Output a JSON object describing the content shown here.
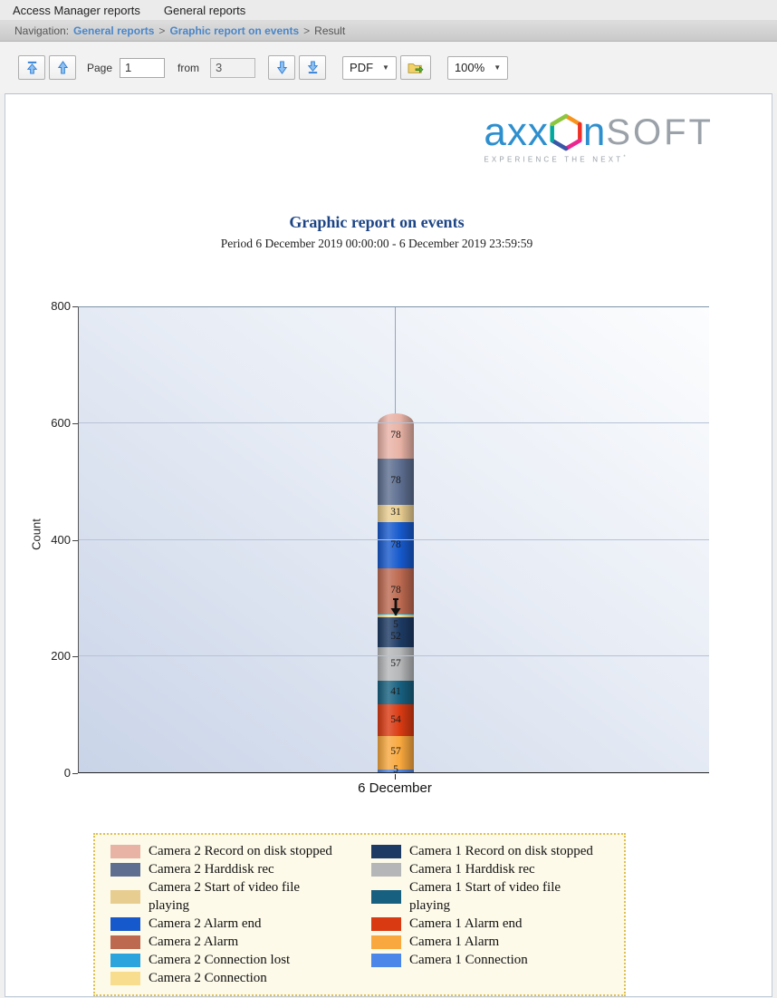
{
  "tabs": {
    "items": [
      {
        "label": "Access Manager reports"
      },
      {
        "label": "General reports"
      }
    ]
  },
  "navbar": {
    "prefix_label": "Navigation:",
    "sep": ">",
    "links": [
      {
        "label": "General reports"
      },
      {
        "label": "Graphic report on events"
      }
    ],
    "current": "Result"
  },
  "toolbar": {
    "page_label": "Page",
    "page_value": "1",
    "from_label": "from",
    "total_pages": "3",
    "format_select": {
      "value": "PDF",
      "caret": "▼"
    },
    "zoom_select": {
      "value": "100%",
      "caret": "▼"
    }
  },
  "logo": {
    "part1": "axx",
    "part2": "n",
    "part3": "SOFT",
    "tagline": "EXPERIENCE THE NEXT",
    "mark": "*"
  },
  "report": {
    "title": "Graphic report on events",
    "period": "Period 6 December 2019 00:00:00 - 6 December 2019 23:59:59"
  },
  "chart_data": {
    "type": "bar",
    "stacked": true,
    "title": "Graphic report on events",
    "categories": [
      "6 December"
    ],
    "xlabel": "",
    "ylabel": "Count",
    "ylim": [
      0,
      800
    ],
    "yticks": [
      0,
      200,
      400,
      600,
      800
    ],
    "grid": true,
    "bar_total": 615,
    "series": [
      {
        "name": "Camera 1 Connection",
        "value": 5,
        "color": "#4c86e8"
      },
      {
        "name": "Camera 1 Alarm",
        "value": 57,
        "color": "#f8a83e"
      },
      {
        "name": "Camera 1 Alarm end",
        "value": 54,
        "color": "#d93a12"
      },
      {
        "name": "Camera 1 Start of video file playing",
        "value": 41,
        "color": "#17607f"
      },
      {
        "name": "Camera 1 Harddisk rec",
        "value": 57,
        "color": "#b4b6b8"
      },
      {
        "name": "Camera 1 Record on disk stopped",
        "value": 52,
        "color": "#1d3a64"
      },
      {
        "name": "Camera 2 Connection",
        "value": 5,
        "color": "#f8dd8e"
      },
      {
        "name": "Camera 2 Connection lost",
        "value": 1,
        "color": "#2ba3dc"
      },
      {
        "name": "Camera 2 Alarm",
        "value": 78,
        "color": "#bd6950"
      },
      {
        "name": "Camera 2 Alarm end",
        "value": 78,
        "color": "#1659cc"
      },
      {
        "name": "Camera 2 Start of video file playing",
        "value": 31,
        "color": "#e8cd90"
      },
      {
        "name": "Camera 2 Harddisk rec",
        "value": 78,
        "color": "#5d6e90"
      },
      {
        "name": "Camera 2 Record on disk stopped",
        "value": 78,
        "color": "#e8b2a5"
      }
    ],
    "legend_columns": [
      [
        {
          "label": "Camera 2 Record on disk stopped",
          "color": "#e8b2a5"
        },
        {
          "label": "Camera 2 Harddisk rec",
          "color": "#5d6e90"
        },
        {
          "label": "Camera 2 Start of video file\nplaying",
          "color": "#e8cd90"
        },
        {
          "label": "Camera 2 Alarm end",
          "color": "#1659cc"
        },
        {
          "label": "Camera 2 Alarm",
          "color": "#bd6950"
        },
        {
          "label": "Camera 2 Connection lost",
          "color": "#2ba3dc"
        },
        {
          "label": "Camera 2 Connection",
          "color": "#f8dd8e"
        }
      ],
      [
        {
          "label": "Camera 1 Record on disk stopped",
          "color": "#1d3a64"
        },
        {
          "label": "Camera 1 Harddisk rec",
          "color": "#b4b6b8"
        },
        {
          "label": "Camera 1 Start of video file\nplaying",
          "color": "#17607f"
        },
        {
          "label": "Camera 1 Alarm end",
          "color": "#d93a12"
        },
        {
          "label": "Camera 1 Alarm",
          "color": "#f8a83e"
        },
        {
          "label": "Camera 1 Connection",
          "color": "#4c86e8"
        }
      ]
    ],
    "legend_border_color": "#dfc052",
    "legend_background": "#fdfae9"
  }
}
